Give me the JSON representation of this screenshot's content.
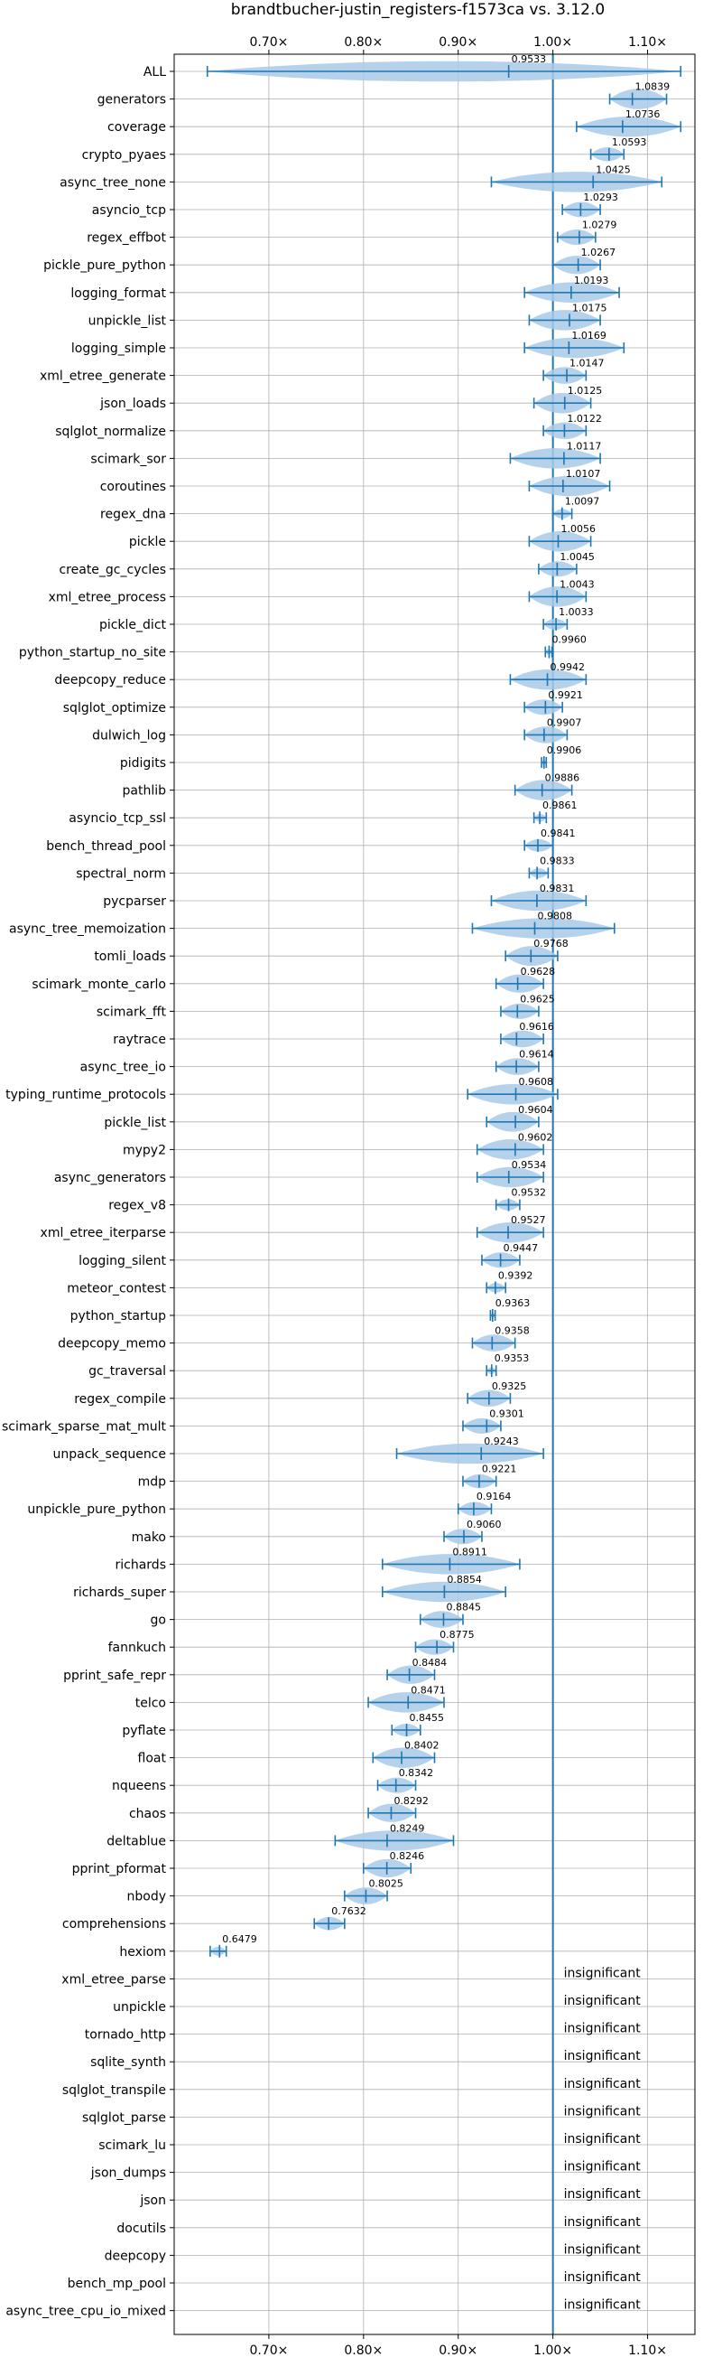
{
  "chart_data": {
    "type": "violin",
    "title": "brandtbucher-justin_registers-f1573ca vs. 3.12.0",
    "xlim": [
      0.6,
      1.15
    ],
    "xticks": [
      0.7,
      0.8,
      0.9,
      1.0,
      1.1
    ],
    "xtick_labels": [
      "0.70×",
      "0.80×",
      "0.90×",
      "1.00×",
      "1.10×"
    ],
    "grid": true,
    "reference_line": 1.0,
    "colors": {
      "accent": "#1f77b4",
      "violin": "#a9c9e6",
      "grid": "#b0b0b0"
    },
    "benchmarks": [
      {
        "name": "ALL",
        "value": 0.9533,
        "label": "0.9533",
        "min": 0.635,
        "max": 1.135
      },
      {
        "name": "generators",
        "value": 1.0839,
        "label": "1.0839",
        "min": 1.06,
        "max": 1.12
      },
      {
        "name": "coverage",
        "value": 1.0736,
        "label": "1.0736",
        "min": 1.025,
        "max": 1.135
      },
      {
        "name": "crypto_pyaes",
        "value": 1.0593,
        "label": "1.0593",
        "min": 1.04,
        "max": 1.075
      },
      {
        "name": "async_tree_none",
        "value": 1.0425,
        "label": "1.0425",
        "min": 0.935,
        "max": 1.115
      },
      {
        "name": "asyncio_tcp",
        "value": 1.0293,
        "label": "1.0293",
        "min": 1.01,
        "max": 1.05
      },
      {
        "name": "regex_effbot",
        "value": 1.0279,
        "label": "1.0279",
        "min": 1.005,
        "max": 1.045
      },
      {
        "name": "pickle_pure_python",
        "value": 1.0267,
        "label": "1.0267",
        "min": 1.0,
        "max": 1.05
      },
      {
        "name": "logging_format",
        "value": 1.0193,
        "label": "1.0193",
        "min": 0.97,
        "max": 1.07
      },
      {
        "name": "unpickle_list",
        "value": 1.0175,
        "label": "1.0175",
        "min": 0.975,
        "max": 1.05
      },
      {
        "name": "logging_simple",
        "value": 1.0169,
        "label": "1.0169",
        "min": 0.97,
        "max": 1.075
      },
      {
        "name": "xml_etree_generate",
        "value": 1.0147,
        "label": "1.0147",
        "min": 0.99,
        "max": 1.035
      },
      {
        "name": "json_loads",
        "value": 1.0125,
        "label": "1.0125",
        "min": 0.98,
        "max": 1.04
      },
      {
        "name": "sqlglot_normalize",
        "value": 1.0122,
        "label": "1.0122",
        "min": 0.99,
        "max": 1.035
      },
      {
        "name": "scimark_sor",
        "value": 1.0117,
        "label": "1.0117",
        "min": 0.955,
        "max": 1.05
      },
      {
        "name": "coroutines",
        "value": 1.0107,
        "label": "1.0107",
        "min": 0.975,
        "max": 1.06
      },
      {
        "name": "regex_dna",
        "value": 1.0097,
        "label": "1.0097",
        "min": 1.0,
        "max": 1.02
      },
      {
        "name": "pickle",
        "value": 1.0056,
        "label": "1.0056",
        "min": 0.975,
        "max": 1.04
      },
      {
        "name": "create_gc_cycles",
        "value": 1.0045,
        "label": "1.0045",
        "min": 0.985,
        "max": 1.025
      },
      {
        "name": "xml_etree_process",
        "value": 1.0043,
        "label": "1.0043",
        "min": 0.975,
        "max": 1.035
      },
      {
        "name": "pickle_dict",
        "value": 1.0033,
        "label": "1.0033",
        "min": 0.99,
        "max": 1.015
      },
      {
        "name": "python_startup_no_site",
        "value": 0.996,
        "label": "0.9960",
        "min": 0.992,
        "max": 0.999
      },
      {
        "name": "deepcopy_reduce",
        "value": 0.9942,
        "label": "0.9942",
        "min": 0.955,
        "max": 1.035
      },
      {
        "name": "sqlglot_optimize",
        "value": 0.9921,
        "label": "0.9921",
        "min": 0.97,
        "max": 1.01
      },
      {
        "name": "dulwich_log",
        "value": 0.9907,
        "label": "0.9907",
        "min": 0.97,
        "max": 1.015
      },
      {
        "name": "pidigits",
        "value": 0.9906,
        "label": "0.9906",
        "min": 0.988,
        "max": 0.993
      },
      {
        "name": "pathlib",
        "value": 0.9886,
        "label": "0.9886",
        "min": 0.96,
        "max": 1.02
      },
      {
        "name": "asyncio_tcp_ssl",
        "value": 0.9861,
        "label": "0.9861",
        "min": 0.98,
        "max": 0.993
      },
      {
        "name": "bench_thread_pool",
        "value": 0.9841,
        "label": "0.9841",
        "min": 0.97,
        "max": 1.0
      },
      {
        "name": "spectral_norm",
        "value": 0.9833,
        "label": "0.9833",
        "min": 0.975,
        "max": 0.995
      },
      {
        "name": "pycparser",
        "value": 0.9831,
        "label": "0.9831",
        "min": 0.935,
        "max": 1.035
      },
      {
        "name": "async_tree_memoization",
        "value": 0.9808,
        "label": "0.9808",
        "min": 0.915,
        "max": 1.065
      },
      {
        "name": "tomli_loads",
        "value": 0.9768,
        "label": "0.9768",
        "min": 0.95,
        "max": 1.005
      },
      {
        "name": "scimark_monte_carlo",
        "value": 0.9628,
        "label": "0.9628",
        "min": 0.94,
        "max": 0.99
      },
      {
        "name": "scimark_fft",
        "value": 0.9625,
        "label": "0.9625",
        "min": 0.945,
        "max": 0.985
      },
      {
        "name": "raytrace",
        "value": 0.9616,
        "label": "0.9616",
        "min": 0.945,
        "max": 0.99
      },
      {
        "name": "async_tree_io",
        "value": 0.9614,
        "label": "0.9614",
        "min": 0.94,
        "max": 0.985
      },
      {
        "name": "typing_runtime_protocols",
        "value": 0.9608,
        "label": "0.9608",
        "min": 0.91,
        "max": 1.005
      },
      {
        "name": "pickle_list",
        "value": 0.9604,
        "label": "0.9604",
        "min": 0.93,
        "max": 0.985
      },
      {
        "name": "mypy2",
        "value": 0.9602,
        "label": "0.9602",
        "min": 0.92,
        "max": 0.99
      },
      {
        "name": "async_generators",
        "value": 0.9534,
        "label": "0.9534",
        "min": 0.92,
        "max": 0.99
      },
      {
        "name": "regex_v8",
        "value": 0.9532,
        "label": "0.9532",
        "min": 0.94,
        "max": 0.965
      },
      {
        "name": "xml_etree_iterparse",
        "value": 0.9527,
        "label": "0.9527",
        "min": 0.92,
        "max": 0.99
      },
      {
        "name": "logging_silent",
        "value": 0.9447,
        "label": "0.9447",
        "min": 0.925,
        "max": 0.965
      },
      {
        "name": "meteor_contest",
        "value": 0.9392,
        "label": "0.9392",
        "min": 0.93,
        "max": 0.95
      },
      {
        "name": "python_startup",
        "value": 0.9363,
        "label": "0.9363",
        "min": 0.934,
        "max": 0.939
      },
      {
        "name": "deepcopy_memo",
        "value": 0.9358,
        "label": "0.9358",
        "min": 0.915,
        "max": 0.96
      },
      {
        "name": "gc_traversal",
        "value": 0.9353,
        "label": "0.9353",
        "min": 0.93,
        "max": 0.94
      },
      {
        "name": "regex_compile",
        "value": 0.9325,
        "label": "0.9325",
        "min": 0.91,
        "max": 0.955
      },
      {
        "name": "scimark_sparse_mat_mult",
        "value": 0.9301,
        "label": "0.9301",
        "min": 0.905,
        "max": 0.945
      },
      {
        "name": "unpack_sequence",
        "value": 0.9243,
        "label": "0.9243",
        "min": 0.835,
        "max": 0.99
      },
      {
        "name": "mdp",
        "value": 0.9221,
        "label": "0.9221",
        "min": 0.905,
        "max": 0.94
      },
      {
        "name": "unpickle_pure_python",
        "value": 0.9164,
        "label": "0.9164",
        "min": 0.9,
        "max": 0.935
      },
      {
        "name": "mako",
        "value": 0.906,
        "label": "0.9060",
        "min": 0.885,
        "max": 0.925
      },
      {
        "name": "richards",
        "value": 0.8911,
        "label": "0.8911",
        "min": 0.82,
        "max": 0.965
      },
      {
        "name": "richards_super",
        "value": 0.8854,
        "label": "0.8854",
        "min": 0.82,
        "max": 0.95
      },
      {
        "name": "go",
        "value": 0.8845,
        "label": "0.8845",
        "min": 0.86,
        "max": 0.905
      },
      {
        "name": "fannkuch",
        "value": 0.8775,
        "label": "0.8775",
        "min": 0.855,
        "max": 0.895
      },
      {
        "name": "pprint_safe_repr",
        "value": 0.8484,
        "label": "0.8484",
        "min": 0.825,
        "max": 0.875
      },
      {
        "name": "telco",
        "value": 0.8471,
        "label": "0.8471",
        "min": 0.805,
        "max": 0.885
      },
      {
        "name": "pyflate",
        "value": 0.8455,
        "label": "0.8455",
        "min": 0.83,
        "max": 0.86
      },
      {
        "name": "float",
        "value": 0.8402,
        "label": "0.8402",
        "min": 0.81,
        "max": 0.875
      },
      {
        "name": "nqueens",
        "value": 0.8342,
        "label": "0.8342",
        "min": 0.815,
        "max": 0.855
      },
      {
        "name": "chaos",
        "value": 0.8292,
        "label": "0.8292",
        "min": 0.805,
        "max": 0.855
      },
      {
        "name": "deltablue",
        "value": 0.8249,
        "label": "0.8249",
        "min": 0.77,
        "max": 0.895
      },
      {
        "name": "pprint_pformat",
        "value": 0.8246,
        "label": "0.8246",
        "min": 0.8,
        "max": 0.85
      },
      {
        "name": "nbody",
        "value": 0.8025,
        "label": "0.8025",
        "min": 0.78,
        "max": 0.825
      },
      {
        "name": "comprehensions",
        "value": 0.7632,
        "label": "0.7632",
        "min": 0.748,
        "max": 0.78
      },
      {
        "name": "hexiom",
        "value": 0.6479,
        "label": "0.6479",
        "min": 0.638,
        "max": 0.655
      },
      {
        "name": "xml_etree_parse",
        "label": "insignificant"
      },
      {
        "name": "unpickle",
        "label": "insignificant"
      },
      {
        "name": "tornado_http",
        "label": "insignificant"
      },
      {
        "name": "sqlite_synth",
        "label": "insignificant"
      },
      {
        "name": "sqlglot_transpile",
        "label": "insignificant"
      },
      {
        "name": "sqlglot_parse",
        "label": "insignificant"
      },
      {
        "name": "scimark_lu",
        "label": "insignificant"
      },
      {
        "name": "json_dumps",
        "label": "insignificant"
      },
      {
        "name": "json",
        "label": "insignificant"
      },
      {
        "name": "docutils",
        "label": "insignificant"
      },
      {
        "name": "deepcopy",
        "label": "insignificant"
      },
      {
        "name": "bench_mp_pool",
        "label": "insignificant"
      },
      {
        "name": "async_tree_cpu_io_mixed",
        "label": "insignificant"
      }
    ]
  }
}
